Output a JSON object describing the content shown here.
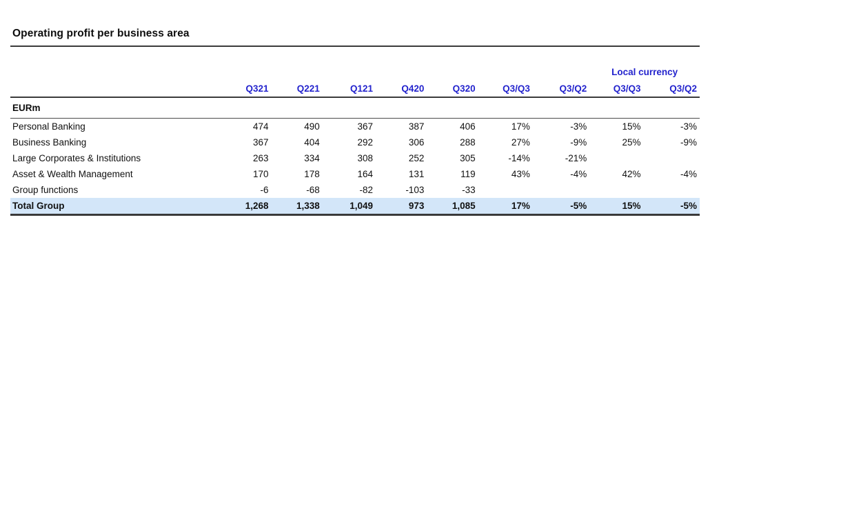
{
  "page": {
    "title": "Operating profit per business area"
  },
  "table": {
    "unit_label": "EURm",
    "group_header": "Local currency",
    "columns": [
      "Q321",
      "Q221",
      "Q121",
      "Q420",
      "Q320",
      "Q3/Q3",
      "Q3/Q2",
      "Q3/Q3",
      "Q3/Q2"
    ],
    "rows": [
      {
        "label": "Personal Banking",
        "values": [
          "474",
          "490",
          "367",
          "387",
          "406",
          "17%",
          "-3%",
          "15%",
          "-3%"
        ]
      },
      {
        "label": "Business Banking",
        "values": [
          "367",
          "404",
          "292",
          "306",
          "288",
          "27%",
          "-9%",
          "25%",
          "-9%"
        ]
      },
      {
        "label": "Large Corporates & Institutions",
        "values": [
          "263",
          "334",
          "308",
          "252",
          "305",
          "-14%",
          "-21%",
          "",
          ""
        ]
      },
      {
        "label": "Asset & Wealth Management",
        "values": [
          "170",
          "178",
          "164",
          "131",
          "119",
          "43%",
          "-4%",
          "42%",
          "-4%"
        ]
      },
      {
        "label": "Group functions",
        "values": [
          "-6",
          "-68",
          "-82",
          "-103",
          "-33",
          "",
          "",
          "",
          ""
        ]
      }
    ],
    "total_row": {
      "label": "Total Group",
      "values": [
        "1,268",
        "1,338",
        "1,049",
        "973",
        "1,085",
        "17%",
        "-5%",
        "15%",
        "-5%"
      ]
    }
  },
  "colors": {
    "header_blue": "#2323CD",
    "total_row_bg": "#D3E6F9",
    "rule_dark": "#3A3A3A"
  }
}
